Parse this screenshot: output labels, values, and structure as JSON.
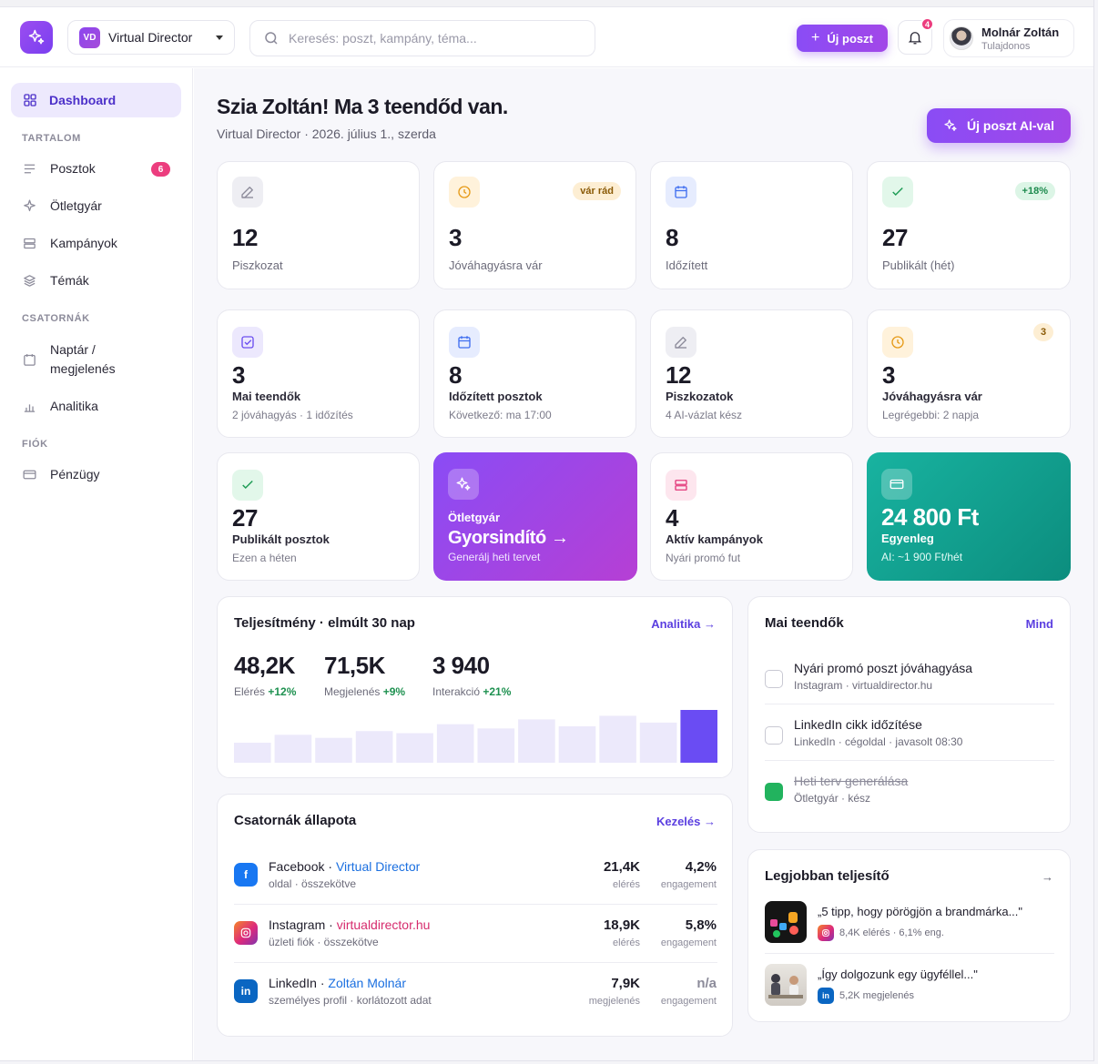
{
  "header": {
    "workspace_badge": "VD",
    "workspace_name": "Virtual Director",
    "search_placeholder": "Keresés: poszt, kampány, téma...",
    "new_post_label": "Új poszt",
    "notifications_count": "4",
    "user_name": "Molnár Zoltán",
    "user_role": "Tulajdonos"
  },
  "sidebar": {
    "active_item": "Dashboard",
    "section_content": "TARTALOM",
    "item_posts": "Posztok",
    "posts_badge": "6",
    "item_ideas": "Ötletgyár",
    "item_campaigns": "Kampányok",
    "item_topics": "Témák",
    "section_channels": "CSATORNÁK",
    "item_calendar_1": "Naptár /",
    "item_calendar_2": "megjelenés",
    "item_analytics": "Analitika",
    "section_account": "FIÓK",
    "item_finance": "Pénzügy"
  },
  "main": {
    "greeting": "Szia Zoltán! Ma 3 teendőd van.",
    "subtitle": "Virtual Director · 2026. július 1., szerda",
    "ai_post_label": "Új poszt AI-val"
  },
  "stats": [
    {
      "value": "12",
      "label": "Piszkozat",
      "pill": ""
    },
    {
      "value": "3",
      "label": "Jóváhagyásra vár",
      "pill": "vár rád"
    },
    {
      "value": "8",
      "label": "Időzített",
      "pill": ""
    },
    {
      "value": "27",
      "label": "Publikált (hét)",
      "pill": "+18%"
    }
  ],
  "summary": [
    {
      "value": "3",
      "title": "Mai teendők",
      "sub": "2 jóváhagyás · 1 időzítés"
    },
    {
      "value": "8",
      "title": "Időzített posztok",
      "sub": "Következő: ma 17:00"
    },
    {
      "value": "12",
      "title": "Piszkozatok",
      "sub": "4 AI-vázlat kész"
    },
    {
      "value": "3",
      "title": "Jóváhagyásra vár",
      "sub": "Legrégebbi: 2 napja",
      "pill": "3"
    }
  ],
  "tiles": {
    "published": {
      "value": "27",
      "title": "Publikált posztok",
      "sub": "Ezen a héten"
    },
    "ideas": {
      "kicker": "Ötletgyár",
      "title": "Gyorsindító",
      "arrow": "→",
      "sub": "Generálj heti tervet"
    },
    "campaigns": {
      "value": "4",
      "title": "Aktív kampányok",
      "sub": "Nyári promó fut"
    },
    "balance": {
      "value": "24 800 Ft",
      "title": "Egyenleg",
      "sub": "AI: ~1 900 Ft/hét"
    }
  },
  "performance": {
    "title": "Teljesítmény · elmúlt 30 nap",
    "link": "Analitika →",
    "metrics": [
      {
        "value": "48,2K",
        "label": "Elérés",
        "delta": "+12%"
      },
      {
        "value": "71,5K",
        "label": "Megjelenés",
        "delta": "+9%"
      },
      {
        "value": "3 940",
        "label": "Interakció",
        "delta": "+21%"
      }
    ],
    "bars": [
      0.38,
      0.53,
      0.47,
      0.6,
      0.56,
      0.73,
      0.65,
      0.82,
      0.69,
      0.89,
      0.76,
      1.0
    ]
  },
  "todos": {
    "title": "Mai teendők",
    "link": "Mind",
    "items": [
      {
        "title": "Nyári promó poszt jóváhagyása",
        "sub": "Instagram · virtualdirector.hu",
        "done": false
      },
      {
        "title": "LinkedIn cikk időzítése",
        "sub": "LinkedIn · cégoldal · javasolt 08:30",
        "done": false
      },
      {
        "title": "Heti terv generálása",
        "sub": "Ötletgyár · kész",
        "done": true
      }
    ]
  },
  "channels": {
    "title": "Csatornák állapota",
    "link": "Kezelés →",
    "items": [
      {
        "network": "Facebook",
        "account": "Virtual Director",
        "sub": "oldal · összekötve",
        "v1": "21,4K",
        "v1_label": "elérés",
        "v2": "4,2%",
        "v2_label": "engagement",
        "color": "#1877f2",
        "account_color": "#1a6fe0"
      },
      {
        "network": "Instagram",
        "account": "virtualdirector.hu",
        "sub": "üzleti fiók · összekötve",
        "v1": "18,9K",
        "v1_label": "elérés",
        "v2": "5,8%",
        "v2_label": "engagement",
        "color": "#e33f6b",
        "account_color": "#d62b6d"
      },
      {
        "network": "LinkedIn",
        "account": "Zoltán Molnár",
        "sub": "személyes profil · korlátozott adat",
        "v1": "7,9K",
        "v1_label": "megjelenés",
        "v2": "n/a",
        "v2_label": "engagement",
        "color": "#0a66c2",
        "account_color": "#1a6fe0"
      }
    ]
  },
  "best": {
    "title": "Legjobban teljesítő",
    "arrow": "→",
    "items": [
      {
        "title": "„5 tipp, hogy pörögjön a brandmárka...\"",
        "stats": "8,4K elérés · 6,1% eng."
      },
      {
        "title": "„Így dolgozunk egy ügyféllel...\"",
        "stats": "5,2K megjelenés"
      }
    ]
  }
}
